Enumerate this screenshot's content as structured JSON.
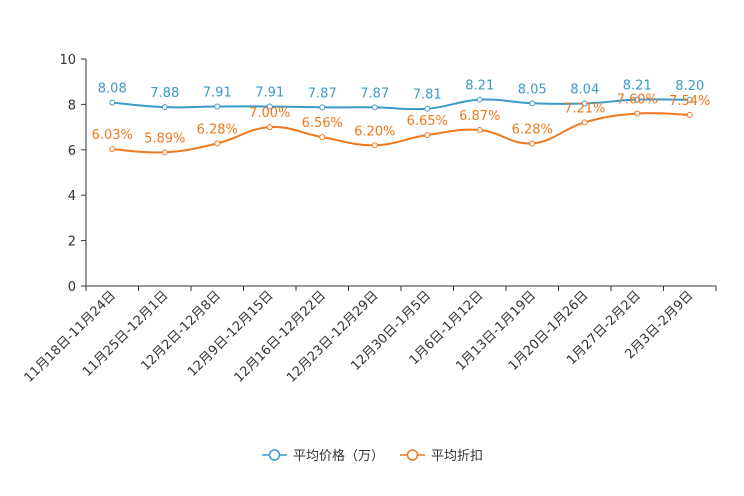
{
  "chart_data": {
    "type": "line",
    "title": "",
    "xlabel": "",
    "ylabel": "",
    "ylim": [
      0,
      10
    ],
    "yticks": [
      0,
      2,
      4,
      6,
      8,
      10
    ],
    "grid": false,
    "legend_position": "bottom",
    "categories": [
      "11月18日-11月24日",
      "11月25日-12月1日",
      "12月2日-12月8日",
      "12月9日-12月15日",
      "12月16日-12月22日",
      "12月23日-12月29日",
      "12月30日-1月5日",
      "1月6日-1月12日",
      "1月13日-1月19日",
      "1月20日-1月26日",
      "1月27日-2月2日",
      "2月3日-2月9日"
    ],
    "series": [
      {
        "name": "平均价格（万）",
        "color": "#3A9BCB",
        "values": [
          8.08,
          7.88,
          7.91,
          7.91,
          7.87,
          7.87,
          7.81,
          8.21,
          8.05,
          8.04,
          8.21,
          8.2
        ],
        "labels": [
          "8.08",
          "7.88",
          "7.91",
          "7.91",
          "7.87",
          "7.87",
          "7.81",
          "8.21",
          "8.05",
          "8.04",
          "8.21",
          "8.20"
        ]
      },
      {
        "name": "平均折扣",
        "color": "#F0781E",
        "values": [
          6.03,
          5.89,
          6.28,
          7.0,
          6.56,
          6.2,
          6.65,
          6.87,
          6.28,
          7.21,
          7.6,
          7.54
        ],
        "labels": [
          "6.03%",
          "5.89%",
          "6.28%",
          "7.00%",
          "6.56%",
          "6.20%",
          "6.65%",
          "6.87%",
          "6.28%",
          "7.21%",
          "7.60%",
          "7.54%"
        ]
      }
    ]
  }
}
